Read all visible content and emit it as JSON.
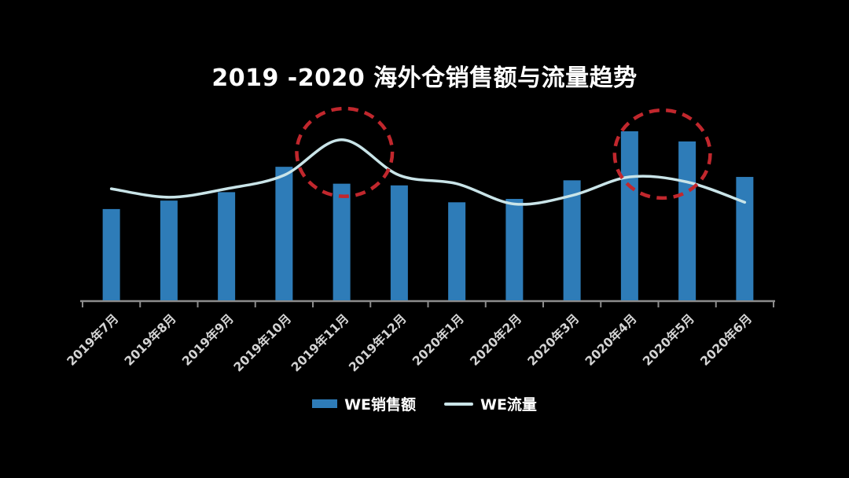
{
  "title": "2019 -2020 海外仓销售额与流量趋势",
  "colors": {
    "background": "#000000",
    "bar": "#2e7cb8",
    "line": "#c9e4e8",
    "axis": "#8c8c8c",
    "axis_label": "#d4d4d4",
    "highlight": "#c1272d",
    "text": "#ffffff"
  },
  "legend": [
    {
      "label": "WE销售额",
      "type": "bar"
    },
    {
      "label": "WE流量",
      "type": "line"
    }
  ],
  "chart_data": {
    "type": "bar",
    "title": "2019 -2020 海外仓销售额与流量趋势",
    "categories": [
      "2019年7月",
      "2019年8月",
      "2019年9月",
      "2019年10月",
      "2019年11月",
      "2019年12月",
      "2020年1月",
      "2020年2月",
      "2020年3月",
      "2020年4月",
      "2020年5月",
      "2020年6月"
    ],
    "series": [
      {
        "name": "WE销售额",
        "type": "bar",
        "values": [
          54,
          59,
          64,
          79,
          69,
          68,
          58,
          60,
          71,
          100,
          94,
          73
        ]
      },
      {
        "name": "WE流量",
        "type": "line",
        "values": [
          66,
          61,
          66,
          74,
          95,
          74,
          69,
          57,
          62,
          73,
          70,
          58
        ]
      }
    ],
    "xlabel": "",
    "ylabel": "",
    "ylim": [
      0,
      112
    ],
    "y_axis_visible": false,
    "grid": false,
    "legend_position": "bottom",
    "annotations": [
      {
        "shape": "dashed-ellipse",
        "note": "traffic peak highlight",
        "x_index": 4.05,
        "y_value": 87.5,
        "rx_index": 0.83,
        "ry_value": 26
      },
      {
        "shape": "dashed-ellipse",
        "note": "sales peak highlight",
        "x_index": 9.57,
        "y_value": 86.5,
        "rx_index": 0.83,
        "ry_value": 26
      }
    ]
  }
}
